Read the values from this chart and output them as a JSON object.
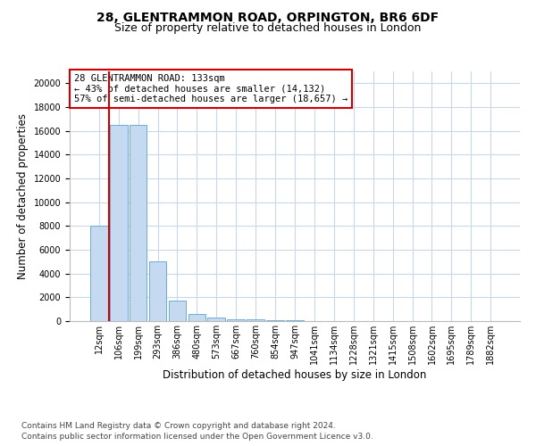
{
  "title": "28, GLENTRAMMON ROAD, ORPINGTON, BR6 6DF",
  "subtitle": "Size of property relative to detached houses in London",
  "xlabel": "Distribution of detached houses by size in London",
  "ylabel": "Number of detached properties",
  "footnote1": "Contains HM Land Registry data © Crown copyright and database right 2024.",
  "footnote2": "Contains public sector information licensed under the Open Government Licence v3.0.",
  "categories": [
    "12sqm",
    "106sqm",
    "199sqm",
    "293sqm",
    "386sqm",
    "480sqm",
    "573sqm",
    "667sqm",
    "760sqm",
    "854sqm",
    "947sqm",
    "1041sqm",
    "1134sqm",
    "1228sqm",
    "1321sqm",
    "1415sqm",
    "1508sqm",
    "1602sqm",
    "1695sqm",
    "1789sqm",
    "1882sqm"
  ],
  "values": [
    8000,
    16500,
    16500,
    5000,
    1700,
    600,
    300,
    180,
    130,
    90,
    50,
    20,
    10,
    5,
    3,
    2,
    1,
    1,
    0,
    0,
    0
  ],
  "bar_color": "#c5d9f0",
  "bar_edge_color": "#6baed6",
  "vline_x": 0.5,
  "vline_color": "#cc0000",
  "annotation_text_line1": "28 GLENTRAMMON ROAD: 133sqm",
  "annotation_text_line2": "← 43% of detached houses are smaller (14,132)",
  "annotation_text_line3": "57% of semi-detached houses are larger (18,657) →",
  "annotation_box_color": "#cc0000",
  "annotation_box_bg": "#ffffff",
  "ylim": [
    0,
    21000
  ],
  "yticks": [
    0,
    2000,
    4000,
    6000,
    8000,
    10000,
    12000,
    14000,
    16000,
    18000,
    20000
  ],
  "bg_color": "#ffffff",
  "grid_color": "#c8d8e8",
  "title_fontsize": 10,
  "subtitle_fontsize": 9,
  "tick_fontsize": 7,
  "label_fontsize": 8.5,
  "footnote_fontsize": 6.5,
  "ann_fontsize": 7.5
}
